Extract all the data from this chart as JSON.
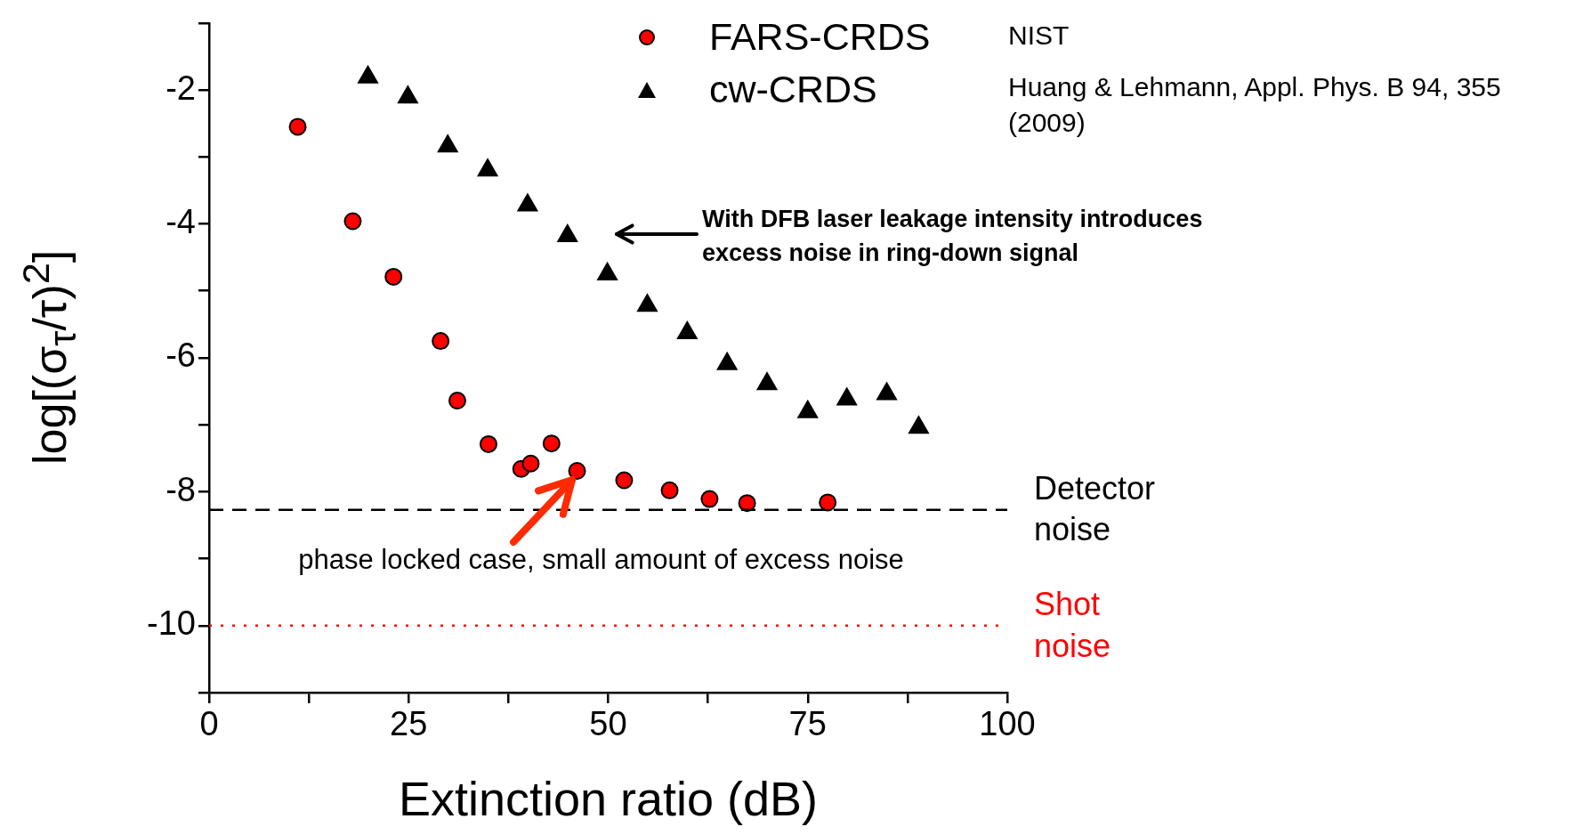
{
  "chart_data": {
    "type": "scatter",
    "xlabel": "Extinction ratio (dB)",
    "ylabel": "log[(σ$_{τ}$/τ)$^{2}$]",
    "xlim": [
      0,
      100
    ],
    "xticks": [
      0,
      {
        "value": 12.5,
        "label": null
      },
      25,
      {
        "value": 37.5,
        "label": null
      },
      50,
      {
        "value": 62.5,
        "label": null
      },
      75,
      {
        "value": 87.5,
        "label": null
      },
      100
    ],
    "ylim": [
      -11,
      -1
    ],
    "yticks": [
      {
        "value": -11,
        "label": null
      },
      -10,
      {
        "value": -9,
        "label": null
      },
      -8,
      {
        "value": -7,
        "label": null
      },
      -6,
      {
        "value": -5,
        "label": null
      },
      -4,
      {
        "value": -3,
        "label": null
      },
      -2,
      {
        "value": -1,
        "label": null
      }
    ],
    "grid": false,
    "legend": "top right",
    "series": [
      {
        "name": "FARS-CRDS",
        "color": "#ff0000",
        "marker": "circle",
        "x": [
          11.1,
          18.0,
          23.1,
          29.0,
          31.1,
          35.0,
          39.1,
          40.3,
          42.9,
          46.1,
          52.0,
          57.7,
          62.7,
          67.4,
          77.5
        ],
        "values": [
          -2.55,
          -3.96,
          -4.79,
          -5.75,
          -6.64,
          -7.29,
          -7.66,
          -7.58,
          -7.28,
          -7.69,
          -7.83,
          -7.98,
          -8.11,
          -8.17,
          -8.16
        ]
      },
      {
        "name": "cw-CRDS",
        "color": "#000000",
        "marker": "triangle",
        "x": [
          19.9,
          24.9,
          29.9,
          34.9,
          39.9,
          44.9,
          49.9,
          54.9,
          59.9,
          64.9,
          69.9,
          75.0,
          79.9,
          84.9,
          88.9
        ],
        "values": [
          -1.81,
          -2.11,
          -2.84,
          -3.2,
          -3.72,
          -4.18,
          -4.75,
          -5.22,
          -5.63,
          -6.09,
          -6.39,
          -6.81,
          -6.62,
          -6.54,
          -7.04
        ]
      }
    ],
    "ref_lines": [
      {
        "axis": "y",
        "value": -8.27,
        "label": "Detector noise",
        "color": "#000000",
        "line_style": "dashed"
      },
      {
        "axis": "y",
        "value": -10,
        "label": "Shot noise",
        "color": "#ff0000",
        "line_style": "dotted"
      }
    ],
    "annotations": [
      "With DFB laser leakage intensity introduces excess noise in ring-down signal",
      {
        "text": "phase locked case, small amount of excess noise",
        "x": 46.1,
        "y": -7.69
      },
      "NIST",
      "Huang & Lehmann, Appl. Phys. B 94, 355 (2009)"
    ]
  }
}
